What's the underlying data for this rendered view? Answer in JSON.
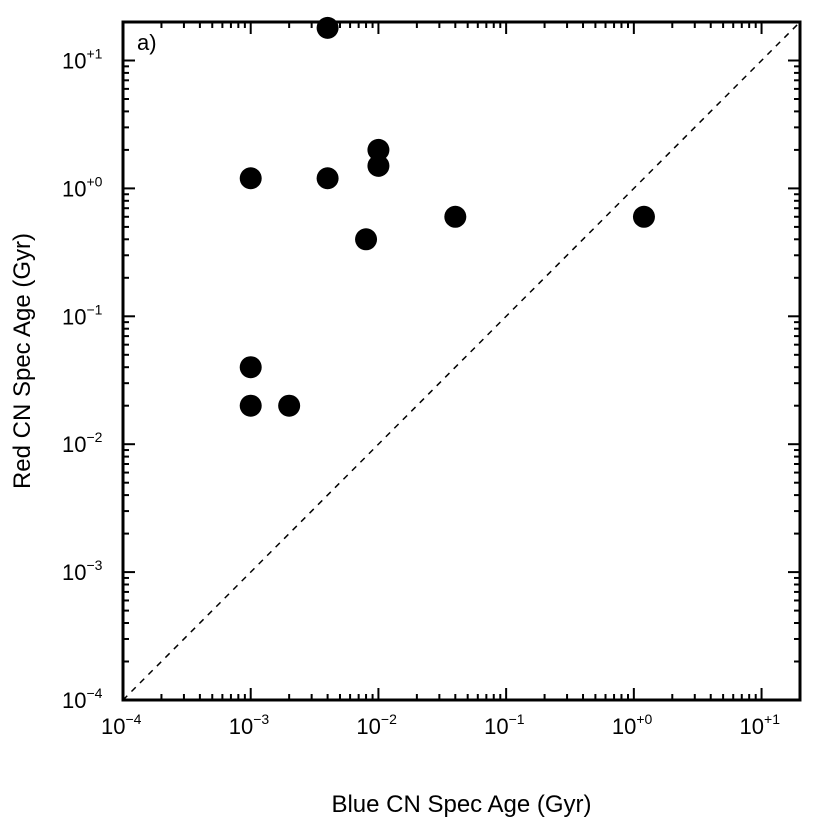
{
  "chart_data": {
    "type": "scatter",
    "title": "",
    "panel_label": "a)",
    "xlabel": "Blue CN Spec Age (Gyr)",
    "ylabel": "Red CN Spec Age (Gyr)",
    "xscale": "log",
    "yscale": "log",
    "xlim": [
      0.0001,
      20
    ],
    "ylim": [
      0.0001,
      20
    ],
    "xticks": [
      {
        "value": 0.0001,
        "base": "10",
        "exp": "−4"
      },
      {
        "value": 0.001,
        "base": "10",
        "exp": "−3"
      },
      {
        "value": 0.01,
        "base": "10",
        "exp": "−2"
      },
      {
        "value": 0.1,
        "base": "10",
        "exp": "−1"
      },
      {
        "value": 1,
        "base": "10",
        "exp": "+0"
      },
      {
        "value": 10,
        "base": "10",
        "exp": "+1"
      }
    ],
    "yticks": [
      {
        "value": 0.0001,
        "base": "10",
        "exp": "−4"
      },
      {
        "value": 0.001,
        "base": "10",
        "exp": "−3"
      },
      {
        "value": 0.01,
        "base": "10",
        "exp": "−2"
      },
      {
        "value": 0.1,
        "base": "10",
        "exp": "−1"
      },
      {
        "value": 1,
        "base": "10",
        "exp": "+0"
      },
      {
        "value": 10,
        "base": "10",
        "exp": "+1"
      }
    ],
    "grid": false,
    "reference_line": {
      "type": "one-to-one",
      "style": "dashed"
    },
    "points": [
      {
        "x": 0.004,
        "y": 18
      },
      {
        "x": 0.001,
        "y": 1.2
      },
      {
        "x": 0.004,
        "y": 1.2
      },
      {
        "x": 0.01,
        "y": 2.0
      },
      {
        "x": 0.01,
        "y": 1.5
      },
      {
        "x": 0.008,
        "y": 0.4
      },
      {
        "x": 0.04,
        "y": 0.6
      },
      {
        "x": 1.2,
        "y": 0.6
      },
      {
        "x": 0.001,
        "y": 0.04
      },
      {
        "x": 0.001,
        "y": 0.02
      },
      {
        "x": 0.002,
        "y": 0.02
      }
    ]
  }
}
